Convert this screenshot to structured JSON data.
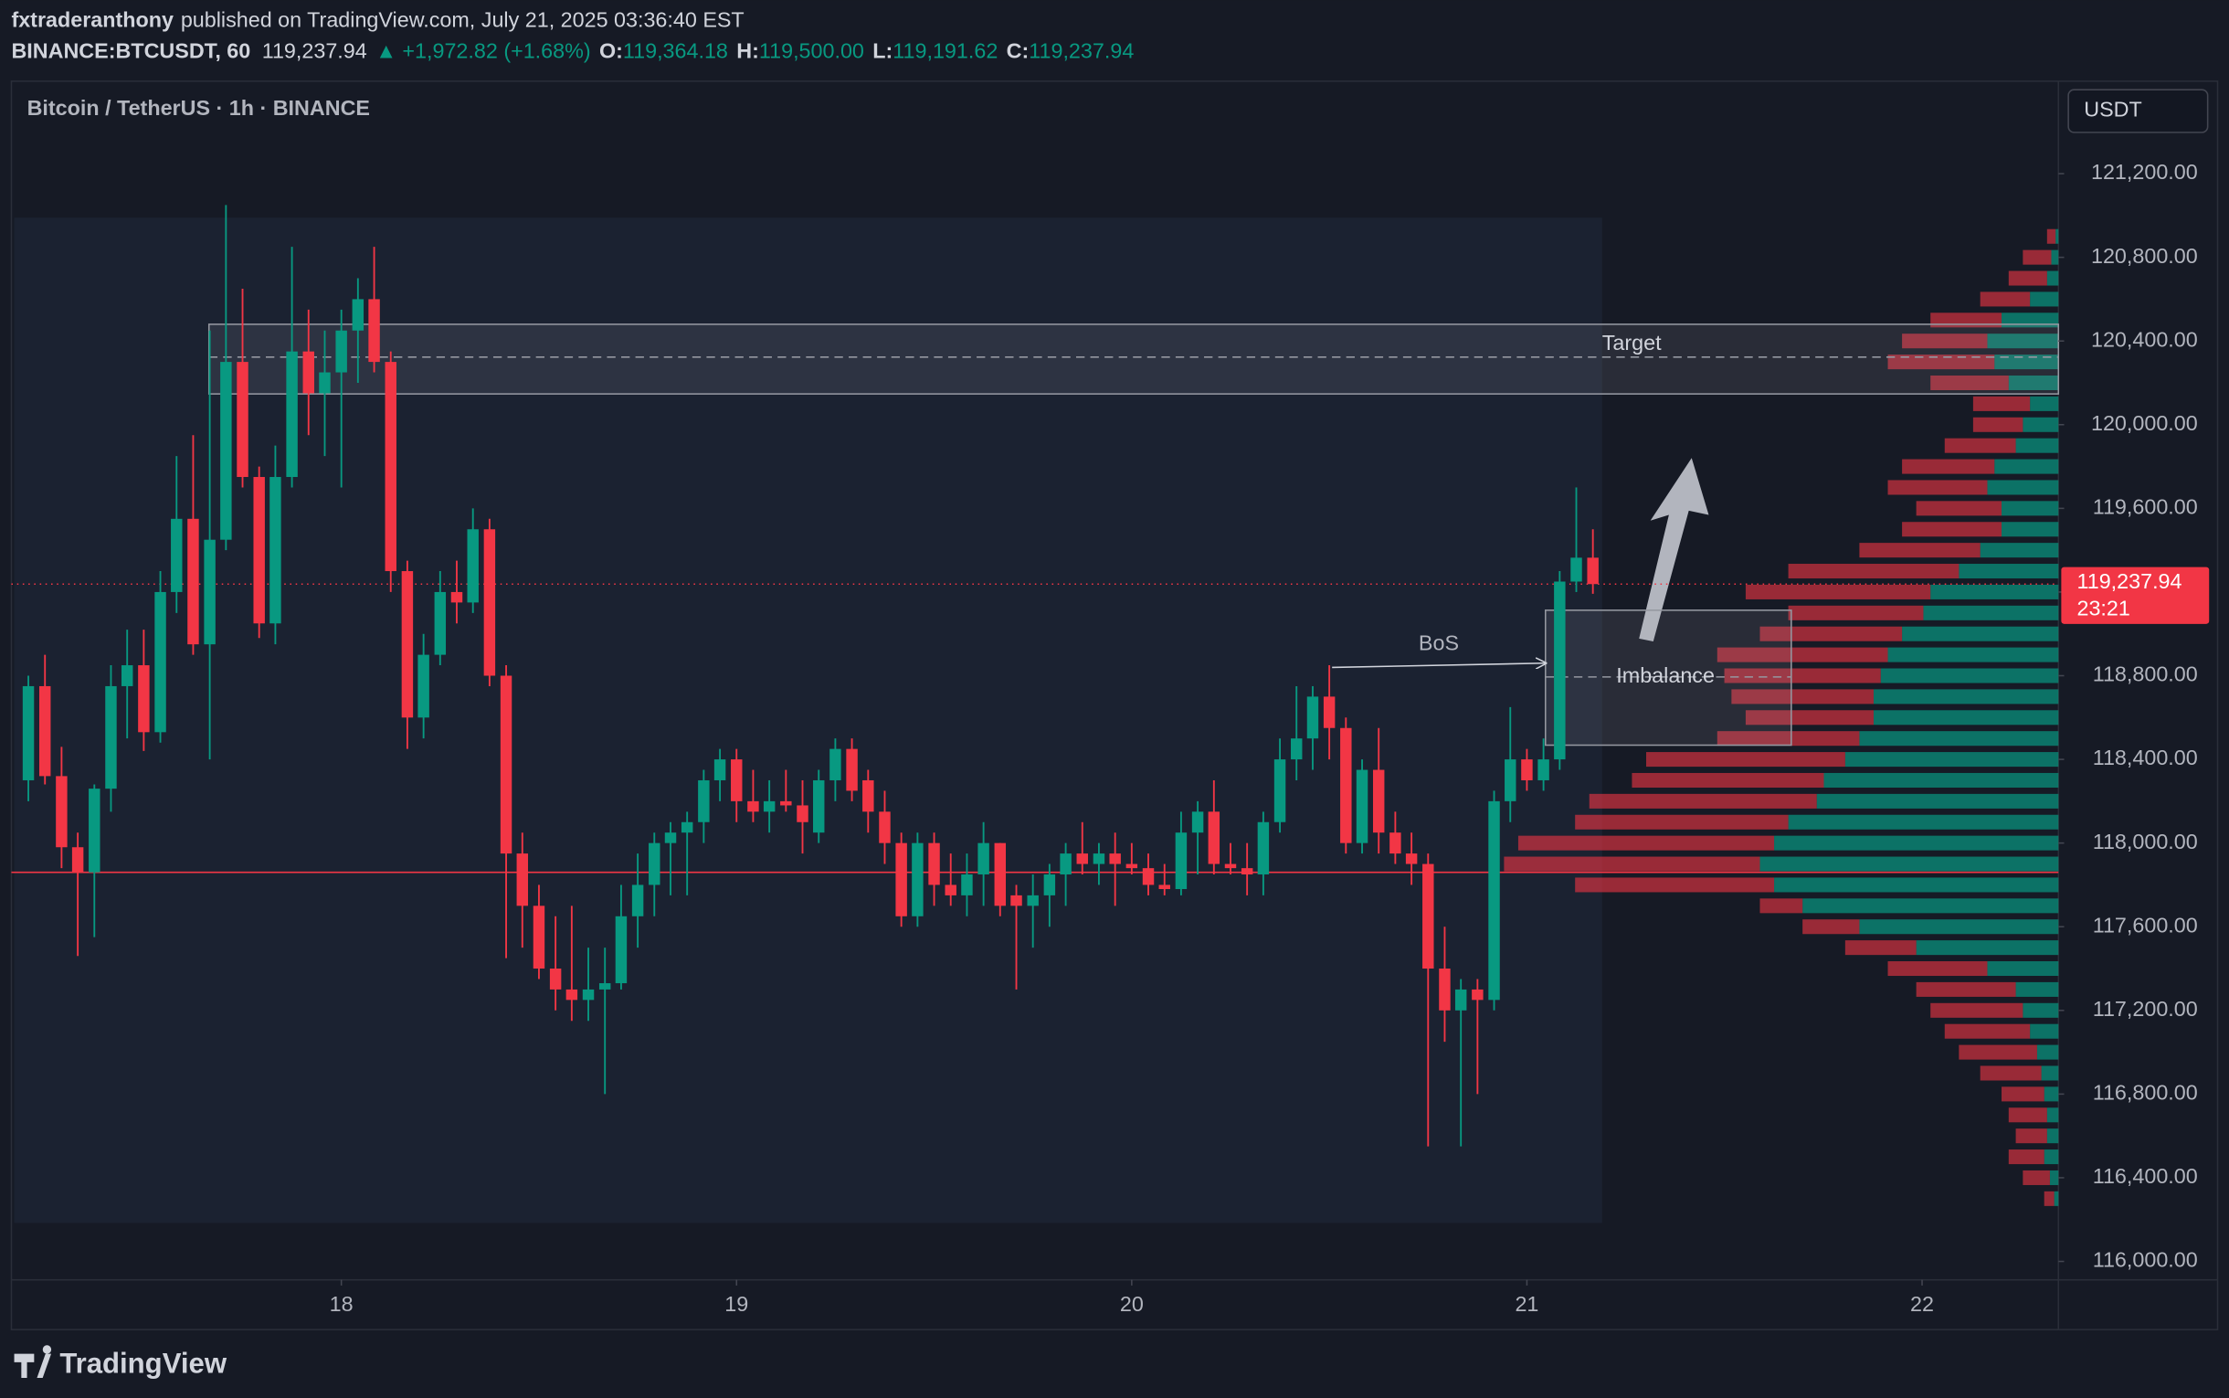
{
  "header": {
    "author": "fxtraderanthony",
    "published": "published on TradingView.com, July 21, 2025 03:36:40 EST",
    "symbol": "BINANCE:BTCUSDT, 60",
    "price": "119,237.94",
    "change": "+1,972.82 (+1.68%)",
    "ohlc": [
      {
        "label": "O:",
        "value": "119,364.18"
      },
      {
        "label": "H:",
        "value": "119,500.00"
      },
      {
        "label": "L:",
        "value": "119,191.62"
      },
      {
        "label": "C:",
        "value": "119,237.94"
      }
    ]
  },
  "chart_data": {
    "type": "candlestick",
    "title": "Bitcoin / TetherUS · 1h · BINANCE",
    "y_axis_label": "USDT",
    "up_color": "#089981",
    "down_color": "#f23645",
    "grid": false,
    "x": [
      17.208,
      17.25,
      17.292,
      17.333,
      17.375,
      17.417,
      17.458,
      17.5,
      17.542,
      17.583,
      17.625,
      17.667,
      17.708,
      17.75,
      17.792,
      17.833,
      17.875,
      17.917,
      17.958,
      18,
      18.042,
      18.083,
      18.125,
      18.167,
      18.208,
      18.25,
      18.292,
      18.333,
      18.375,
      18.417,
      18.458,
      18.5,
      18.542,
      18.583,
      18.625,
      18.667,
      18.708,
      18.75,
      18.792,
      18.833,
      18.875,
      18.917,
      18.958,
      19,
      19.042,
      19.083,
      19.125,
      19.167,
      19.208,
      19.25,
      19.292,
      19.333,
      19.375,
      19.417,
      19.458,
      19.5,
      19.542,
      19.583,
      19.625,
      19.667,
      19.708,
      19.75,
      19.792,
      19.833,
      19.875,
      19.917,
      19.958,
      20,
      20.042,
      20.083,
      20.125,
      20.167,
      20.208,
      20.25,
      20.292,
      20.333,
      20.375,
      20.417,
      20.458,
      20.5,
      20.542,
      20.583,
      20.625,
      20.667,
      20.708,
      20.75,
      20.792,
      20.833,
      20.875,
      20.917,
      20.958,
      21,
      21.042,
      21.083,
      21.125,
      21.167
    ],
    "open": [
      118300,
      118750,
      118320,
      117980,
      117860,
      118260,
      118750,
      118850,
      118530,
      119200,
      119550,
      118950,
      119450,
      120300,
      119750,
      119050,
      119750,
      120350,
      120150,
      120250,
      120450,
      120600,
      120300,
      119300,
      118600,
      118900,
      119200,
      119150,
      119500,
      118800,
      117950,
      117700,
      117400,
      117300,
      117250,
      117300,
      117330,
      117650,
      117800,
      118000,
      118050,
      118100,
      118300,
      118400,
      118200,
      118150,
      118200,
      118180,
      118050,
      118300,
      118450,
      118300,
      118150,
      118000,
      117650,
      118000,
      117800,
      117750,
      117850,
      118000,
      117750,
      117700,
      117750,
      117850,
      117950,
      117900,
      117950,
      117900,
      117880,
      117800,
      117780,
      118050,
      118150,
      117900,
      117880,
      117850,
      118100,
      118400,
      118500,
      118700,
      118550,
      118000,
      118350,
      118050,
      117950,
      117900,
      117400,
      117200,
      117300,
      117250,
      118200,
      118400,
      118300,
      118400,
      119250,
      119364.18
    ],
    "high": [
      118800,
      118900,
      118460,
      118050,
      118280,
      118850,
      119020,
      119020,
      119300,
      119850,
      119950,
      120450,
      121050,
      120650,
      119800,
      119900,
      120850,
      120550,
      120450,
      120550,
      120700,
      120850,
      120350,
      119350,
      119000,
      119300,
      119350,
      119600,
      119550,
      118850,
      118050,
      117800,
      117650,
      117700,
      117500,
      117500,
      117800,
      117950,
      118050,
      118100,
      118150,
      118350,
      118450,
      118450,
      118350,
      118300,
      118350,
      118300,
      118350,
      118500,
      118500,
      118350,
      118250,
      118050,
      118050,
      118050,
      117950,
      117950,
      118100,
      118000,
      117800,
      117850,
      117900,
      118000,
      118100,
      118000,
      118050,
      118000,
      117950,
      117900,
      118150,
      118200,
      118300,
      118000,
      118000,
      118150,
      118500,
      118750,
      118750,
      118850,
      118600,
      118400,
      118550,
      118150,
      118050,
      117950,
      117600,
      117350,
      117350,
      118250,
      118650,
      118450,
      118500,
      119300,
      119700,
      119500
    ],
    "low": [
      118200,
      118280,
      117880,
      117460,
      117550,
      118150,
      118500,
      118440,
      118480,
      119100,
      118900,
      118400,
      119400,
      119700,
      118980,
      118950,
      119700,
      119950,
      119850,
      119700,
      120200,
      120250,
      119200,
      118450,
      118500,
      118850,
      119050,
      119100,
      118750,
      117450,
      117500,
      117350,
      117200,
      117150,
      117150,
      116800,
      117300,
      117500,
      117650,
      117750,
      117750,
      118000,
      118200,
      118100,
      118100,
      118050,
      118150,
      117950,
      118000,
      118200,
      118200,
      118050,
      117900,
      117600,
      117600,
      117700,
      117700,
      117650,
      117700,
      117650,
      117300,
      117500,
      117600,
      117700,
      117850,
      117800,
      117700,
      117850,
      117750,
      117750,
      117750,
      117850,
      117850,
      117850,
      117750,
      117750,
      118050,
      118300,
      118350,
      118400,
      117950,
      117950,
      117950,
      117900,
      117800,
      116550,
      117050,
      116550,
      116800,
      117200,
      118100,
      118250,
      118250,
      118350,
      119200,
      119191.62
    ],
    "close": [
      118750,
      118320,
      117980,
      117860,
      118260,
      118750,
      118850,
      118530,
      119200,
      119550,
      118950,
      119450,
      120300,
      119750,
      119050,
      119750,
      120350,
      120150,
      120250,
      120450,
      120600,
      120300,
      119300,
      118600,
      118900,
      119200,
      119150,
      119500,
      118800,
      117950,
      117700,
      117400,
      117300,
      117250,
      117300,
      117330,
      117650,
      117800,
      118000,
      118050,
      118100,
      118300,
      118400,
      118200,
      118150,
      118200,
      118180,
      118100,
      118300,
      118450,
      118250,
      118150,
      118000,
      117650,
      118000,
      117800,
      117750,
      117850,
      118000,
      117700,
      117700,
      117750,
      117850,
      117950,
      117900,
      117950,
      117900,
      117880,
      117800,
      117780,
      118050,
      118150,
      117900,
      117880,
      117850,
      118100,
      118400,
      118500,
      118700,
      118550,
      118000,
      118350,
      118050,
      117950,
      117900,
      117400,
      117200,
      117300,
      117250,
      118200,
      118400,
      118300,
      118400,
      119250,
      119364.18,
      119237.94
    ],
    "last_price_label": "119,237.94",
    "countdown": "23:21",
    "horizontal_line": 117860,
    "zones": [
      {
        "label": "Target",
        "top": 120480,
        "bottom": 120147,
        "mid": 120323,
        "x_start": 17.665,
        "x_end": 22.345
      },
      {
        "label": "Imbalance",
        "top": 119113,
        "bottom": 118468,
        "mid": 118794,
        "x_start": 21.047,
        "x_end": 21.669
      }
    ],
    "bos": {
      "label": "BoS",
      "price": 118860,
      "x_start": 20.507,
      "x_end": 21.047
    },
    "volume_profile": {
      "prices": [
        120900,
        120800,
        120700,
        120600,
        120500,
        120400,
        120300,
        120200,
        120100,
        120000,
        119900,
        119800,
        119700,
        119600,
        119500,
        119400,
        119300,
        119200,
        119100,
        119000,
        118900,
        118800,
        118700,
        118600,
        118500,
        118400,
        118300,
        118200,
        118100,
        118000,
        117900,
        117800,
        117700,
        117600,
        117500,
        117400,
        117300,
        117200,
        117100,
        117000,
        116900,
        116800,
        116700,
        116600,
        116500,
        116400,
        116300
      ],
      "up": [
        2,
        5,
        8,
        20,
        40,
        50,
        45,
        35,
        20,
        25,
        30,
        45,
        50,
        40,
        40,
        55,
        70,
        90,
        95,
        110,
        120,
        125,
        130,
        130,
        140,
        150,
        165,
        170,
        190,
        200,
        210,
        200,
        180,
        140,
        100,
        50,
        30,
        25,
        20,
        15,
        12,
        10,
        8,
        8,
        10,
        6,
        3
      ],
      "down": [
        6,
        20,
        27,
        35,
        50,
        60,
        75,
        55,
        40,
        35,
        50,
        65,
        70,
        60,
        70,
        85,
        120,
        130,
        95,
        100,
        120,
        110,
        100,
        90,
        100,
        140,
        135,
        160,
        150,
        180,
        180,
        140,
        30,
        40,
        50,
        70,
        70,
        65,
        60,
        55,
        43,
        30,
        27,
        22,
        25,
        19,
        7
      ]
    },
    "xlim": [
      17.165,
      22.345
    ],
    "ylim": [
      115912,
      121642
    ],
    "xticks": [
      18,
      19,
      20,
      21,
      22
    ],
    "yticks": [
      {
        "value": 116000,
        "label": "116,000.00"
      },
      {
        "value": 116400,
        "label": "116,400.00"
      },
      {
        "value": 116800,
        "label": "116,800.00"
      },
      {
        "value": 117200,
        "label": "117,200.00"
      },
      {
        "value": 117600,
        "label": "117,600.00"
      },
      {
        "value": 118000,
        "label": "118,000.00"
      },
      {
        "value": 118400,
        "label": "118,400.00"
      },
      {
        "value": 118800,
        "label": "118,800.00"
      },
      {
        "value": 119200,
        "label": "119,200.00"
      },
      {
        "value": 119600,
        "label": "119,600.00"
      },
      {
        "value": 120000,
        "label": "120,000.00"
      },
      {
        "value": 120400,
        "label": "120,400.00"
      },
      {
        "value": 120800,
        "label": "120,800.00"
      },
      {
        "value": 121200,
        "label": "121,200.00"
      }
    ]
  },
  "footer": {
    "brand": "TradingView"
  }
}
